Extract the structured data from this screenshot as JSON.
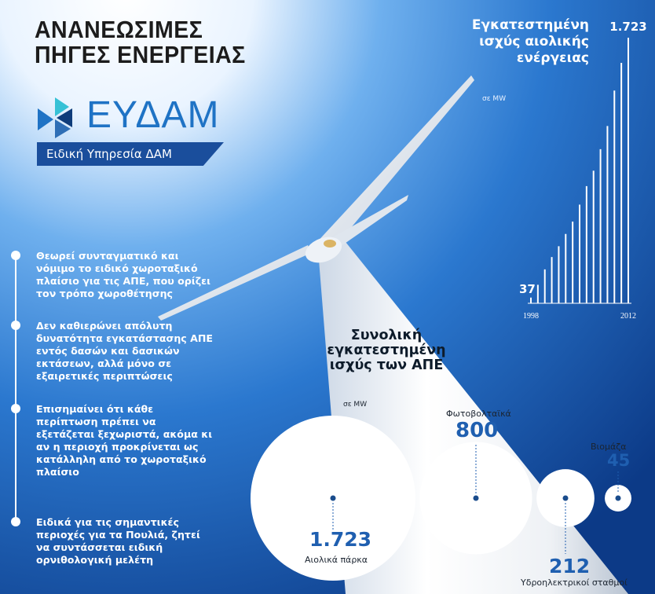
{
  "title": {
    "line1": "ΑΝΑΝΕΩΣΙΜΕΣ",
    "line2": "ΠΗΓΕΣ ΕΝΕΡΓΕΙΑΣ"
  },
  "logo": {
    "wordmark": "ΕΥΔΑΜ",
    "tagline": "Ειδική Υπηρεσία ΔΑΜ"
  },
  "bullets": [
    "Θεωρεί συνταγματικό και νόμιμο το ειδικό χωροταξικό πλαίσιο για τις ΑΠΕ, που ορίζει τον τρόπο χωροθέτησης",
    "Δεν καθιερώνει απόλυτη δυνατότητα εγκατάστασης ΑΠΕ εντός δασών και δασικών εκτάσεων, αλλά μόνο σε εξαιρετικές περιπτώσεις",
    "Επισημαίνει ότι κάθε περίπτωση πρέπει να εξετάζεται ξεχωριστά, ακόμα κι αν η περιοχή προκρίνεται ως κατάλληλη από το χωροταξικό πλαίσιο",
    "Ειδικά για τις σημαντικές περιοχές για τα Πουλιά, ζητεί να συντάσσεται ειδική ορνιθολογική μελέτη"
  ],
  "colors": {
    "sky_dark": "#0f3f8f",
    "sky_mid": "#2f7fd6",
    "brand_blue": "#1f73c5",
    "tagline_bg": "#1a4e9c",
    "value_blue": "#1f5fb0",
    "marker_blue": "#1a4c8c"
  },
  "chart_data": [
    {
      "type": "bar",
      "title": "Εγκατεστημένη ισχύς αιολικής ενέργειας",
      "unit": "σε MW",
      "x_start": "1998",
      "x_end": "2012",
      "x": [
        1998,
        1999,
        2000,
        2001,
        2002,
        2003,
        2004,
        2005,
        2006,
        2007,
        2008,
        2009,
        2010,
        2011,
        2012
      ],
      "values": [
        37,
        120,
        220,
        300,
        370,
        450,
        530,
        640,
        760,
        860,
        1000,
        1150,
        1380,
        1560,
        1723
      ],
      "first_label": "37",
      "last_label": "1.723"
    },
    {
      "type": "bubble",
      "title": "Συνολική εγκατεστημένη ισχύς των ΑΠΕ",
      "unit": "σε MW",
      "items": [
        {
          "name": "Αιολικά πάρκα",
          "value": 1723,
          "label": "1.723"
        },
        {
          "name": "Φωτοβολταϊκά",
          "value": 800,
          "label": "800"
        },
        {
          "name": "Υδροηλεκτρικοί σταθμοί",
          "value": 212,
          "label": "212"
        },
        {
          "name": "Βιομάζα",
          "value": 45,
          "label": "45"
        }
      ]
    }
  ]
}
